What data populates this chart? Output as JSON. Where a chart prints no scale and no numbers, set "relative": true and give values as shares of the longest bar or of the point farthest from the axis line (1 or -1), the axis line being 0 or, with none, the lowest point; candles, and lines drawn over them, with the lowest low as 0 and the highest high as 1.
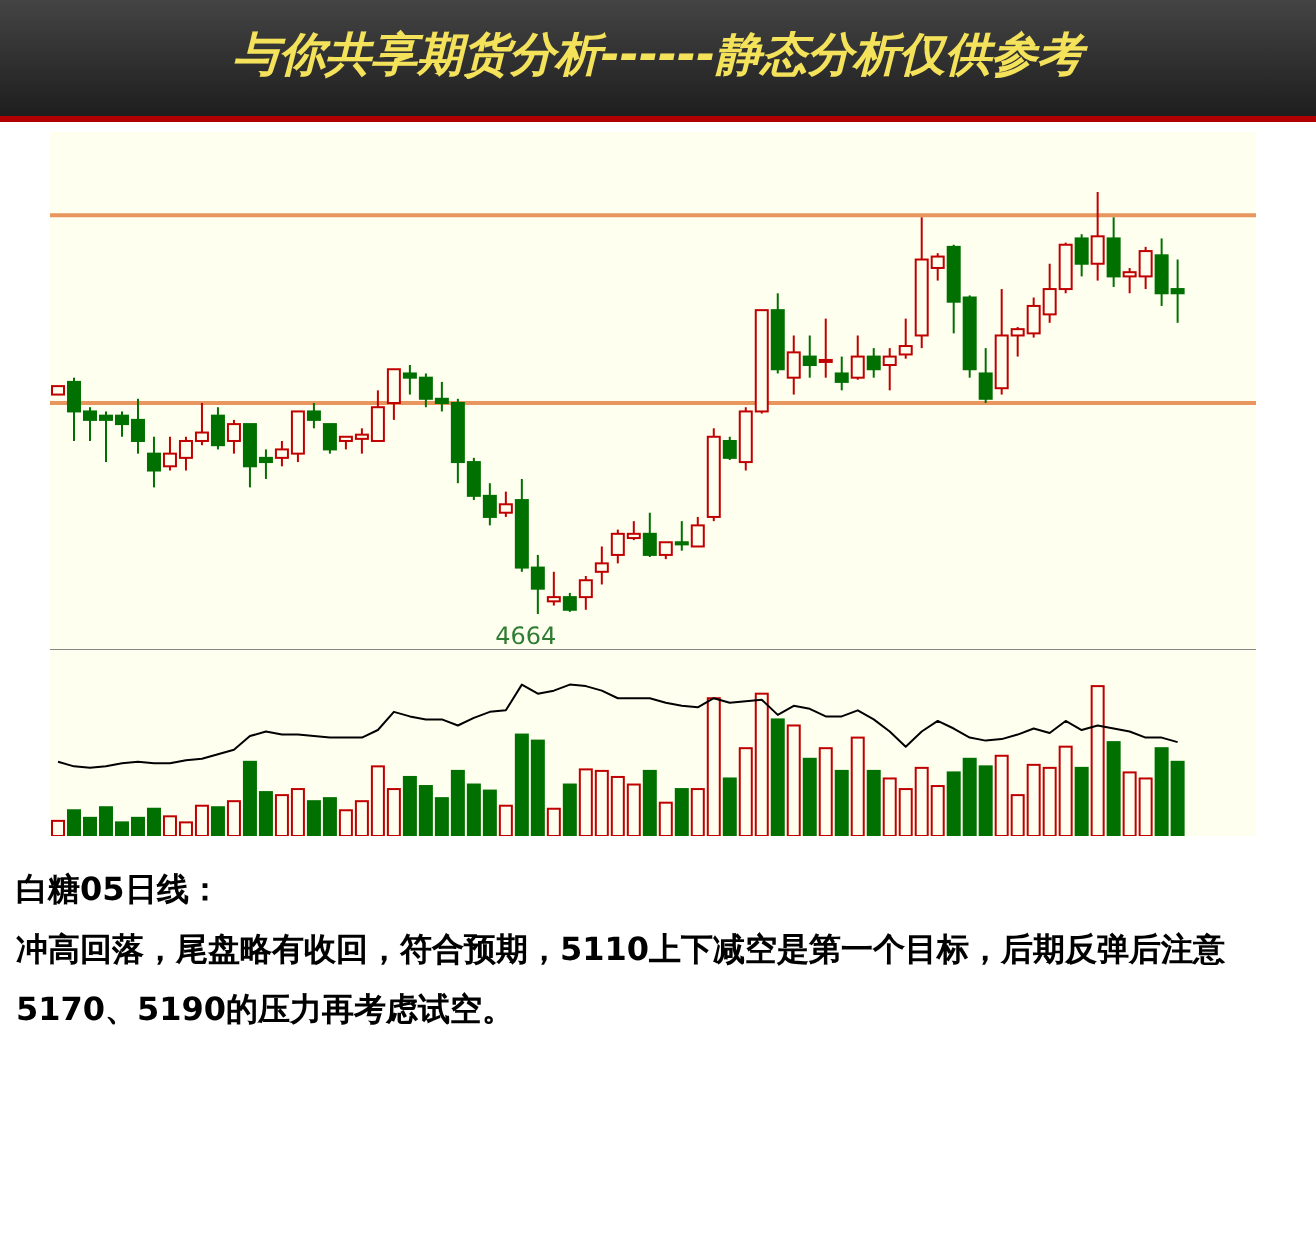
{
  "chart_data": [
    {
      "type": "candlestick",
      "relative": true,
      "title": "与你共享期货分析------静态分析仅供参考",
      "categories": [
        null,
        null,
        null,
        null,
        null,
        null,
        null,
        null,
        null,
        null,
        null,
        null,
        null,
        null,
        null,
        null,
        null,
        null,
        null,
        null,
        null,
        null,
        null,
        null,
        null,
        null,
        null,
        null,
        null,
        null,
        null,
        null,
        null,
        null,
        null,
        null,
        null,
        null,
        null,
        null,
        null,
        null,
        null,
        null,
        null,
        null,
        null,
        null,
        null,
        null,
        null,
        null,
        null,
        null,
        null,
        null,
        null,
        null,
        null,
        null,
        null,
        null,
        null,
        null,
        null,
        null,
        null,
        null,
        null,
        null,
        null
      ],
      "ohlc": [
        [
          0.52,
          0.54,
          0.52,
          0.54
        ],
        [
          0.55,
          0.56,
          0.41,
          0.48
        ],
        [
          0.48,
          0.49,
          0.41,
          0.46
        ],
        [
          0.47,
          0.48,
          0.36,
          0.46
        ],
        [
          0.47,
          0.48,
          0.42,
          0.45
        ],
        [
          0.46,
          0.51,
          0.38,
          0.41
        ],
        [
          0.38,
          0.42,
          0.3,
          0.34
        ],
        [
          0.35,
          0.42,
          0.34,
          0.38
        ],
        [
          0.37,
          0.42,
          0.34,
          0.41
        ],
        [
          0.41,
          0.5,
          0.4,
          0.43
        ],
        [
          0.47,
          0.49,
          0.39,
          0.4
        ],
        [
          0.41,
          0.46,
          0.38,
          0.45
        ],
        [
          0.45,
          0.45,
          0.3,
          0.35
        ],
        [
          0.37,
          0.39,
          0.32,
          0.36
        ],
        [
          0.37,
          0.41,
          0.35,
          0.39
        ],
        [
          0.38,
          0.48,
          0.36,
          0.48
        ],
        [
          0.48,
          0.5,
          0.44,
          0.46
        ],
        [
          0.45,
          0.45,
          0.38,
          0.39
        ],
        [
          0.41,
          0.42,
          0.39,
          0.42
        ],
        [
          0.415,
          0.44,
          0.38,
          0.425
        ],
        [
          0.41,
          0.53,
          0.41,
          0.49
        ],
        [
          0.5,
          0.58,
          0.46,
          0.58
        ],
        [
          0.57,
          0.59,
          0.52,
          0.56
        ],
        [
          0.56,
          0.57,
          0.49,
          0.51
        ],
        [
          0.51,
          0.55,
          0.48,
          0.5
        ],
        [
          0.5,
          0.51,
          0.31,
          0.36
        ],
        [
          0.36,
          0.37,
          0.27,
          0.28
        ],
        [
          0.28,
          0.31,
          0.21,
          0.23
        ],
        [
          0.24,
          0.29,
          0.23,
          0.26
        ],
        [
          0.27,
          0.32,
          0.1,
          0.11
        ],
        [
          0.11,
          0.14,
          0,
          0.06
        ],
        [
          0.03,
          0.1,
          0.02,
          0.04
        ],
        [
          0.04,
          0.05,
          0.005,
          0.01
        ],
        [
          0.04,
          0.09,
          0.01,
          0.08
        ],
        [
          0.1,
          0.16,
          0.07,
          0.12
        ],
        [
          0.14,
          0.2,
          0.12,
          0.19
        ],
        [
          0.18,
          0.22,
          0.175,
          0.19
        ],
        [
          0.19,
          0.24,
          0.135,
          0.14
        ],
        [
          0.14,
          0.17,
          0.13,
          0.17
        ],
        [
          0.17,
          0.22,
          0.15,
          0.165
        ],
        [
          0.16,
          0.23,
          0.16,
          0.21
        ],
        [
          0.23,
          0.44,
          0.22,
          0.42
        ],
        [
          0.41,
          0.42,
          0.365,
          0.37
        ],
        [
          0.36,
          0.49,
          0.34,
          0.48
        ],
        [
          0.48,
          0.72,
          0.475,
          0.72
        ],
        [
          0.72,
          0.76,
          0.57,
          0.58
        ],
        [
          0.56,
          0.66,
          0.52,
          0.62
        ],
        [
          0.61,
          0.66,
          0.56,
          0.59
        ],
        [
          0.598,
          0.7,
          0.56,
          0.602
        ],
        [
          0.57,
          0.61,
          0.53,
          0.55
        ],
        [
          0.56,
          0.66,
          0.555,
          0.61
        ],
        [
          0.61,
          0.63,
          0.56,
          0.58
        ],
        [
          0.59,
          0.63,
          0.53,
          0.61
        ],
        [
          0.615,
          0.7,
          0.605,
          0.635
        ],
        [
          0.66,
          0.94,
          0.63,
          0.84
        ],
        [
          0.82,
          0.855,
          0.79,
          0.847
        ],
        [
          0.87,
          0.875,
          0.665,
          0.74
        ],
        [
          0.75,
          0.755,
          0.56,
          0.58
        ],
        [
          0.57,
          0.63,
          0.5,
          0.51
        ],
        [
          0.535,
          0.77,
          0.52,
          0.66
        ],
        [
          0.66,
          0.68,
          0.61,
          0.675
        ],
        [
          0.665,
          0.75,
          0.655,
          0.73
        ],
        [
          0.71,
          0.83,
          0.69,
          0.77
        ],
        [
          0.77,
          0.88,
          0.76,
          0.875
        ],
        [
          0.89,
          0.9,
          0.8,
          0.83
        ],
        [
          0.83,
          1,
          0.79,
          0.895
        ],
        [
          0.89,
          0.94,
          0.775,
          0.8
        ],
        [
          0.8,
          0.82,
          0.76,
          0.81
        ],
        [
          0.8,
          0.87,
          0.77,
          0.86
        ],
        [
          0.85,
          0.89,
          0.73,
          0.76
        ],
        [
          0.77,
          0.84,
          0.69,
          0.76
        ]
      ],
      "ref_lines": [
        {
          "axis": "y",
          "value": 0.945,
          "color": "#e8955e"
        },
        {
          "axis": "y",
          "value": 0.5,
          "color": "#e8955e"
        }
      ],
      "annotations": [
        "4664"
      ]
    },
    {
      "type": "bar",
      "relative": true,
      "categories": [
        null,
        null,
        null,
        null,
        null,
        null,
        null,
        null,
        null,
        null,
        null,
        null,
        null,
        null,
        null,
        null,
        null,
        null,
        null,
        null,
        null,
        null,
        null,
        null,
        null,
        null,
        null,
        null,
        null,
        null,
        null,
        null,
        null,
        null,
        null,
        null,
        null,
        null,
        null,
        null,
        null,
        null,
        null,
        null,
        null,
        null,
        null,
        null,
        null,
        null,
        null,
        null,
        null,
        null,
        null,
        null,
        null,
        null,
        null,
        null,
        null,
        null,
        null,
        null,
        null,
        null,
        null,
        null,
        null,
        null,
        null
      ],
      "series": [
        {
          "type": "bar",
          "colors": [
            "#c00000",
            "#007000",
            "#007000",
            "#007000",
            "#007000",
            "#007000",
            "#007000",
            "#c00000",
            "#c00000",
            "#c00000",
            "#007000",
            "#c00000",
            "#007000",
            "#007000",
            "#c00000",
            "#c00000",
            "#007000",
            "#007000",
            "#c00000",
            "#c00000",
            "#c00000",
            "#c00000",
            "#007000",
            "#007000",
            "#007000",
            "#007000",
            "#007000",
            "#007000",
            "#c00000",
            "#007000",
            "#007000",
            "#c00000",
            "#007000",
            "#c00000",
            "#c00000",
            "#c00000",
            "#c00000",
            "#007000",
            "#c00000",
            "#007000",
            "#c00000",
            "#c00000",
            "#007000",
            "#c00000",
            "#c00000",
            "#007000",
            "#c00000",
            "#007000",
            "#c00000",
            "#007000",
            "#c00000",
            "#007000",
            "#c00000",
            "#c00000",
            "#c00000",
            "#c00000",
            "#007000",
            "#007000",
            "#007000",
            "#c00000",
            "#c00000",
            "#c00000",
            "#c00000",
            "#c00000",
            "#007000",
            "#c00000",
            "#007000",
            "#c00000",
            "#c00000",
            "#007000",
            "#007000"
          ],
          "values": [
            0.1,
            0.17,
            0.12,
            0.19,
            0.09,
            0.12,
            0.18,
            0.13,
            0.09,
            0.2,
            0.19,
            0.23,
            0.49,
            0.29,
            0.27,
            0.31,
            0.23,
            0.25,
            0.17,
            0.23,
            0.46,
            0.31,
            0.39,
            0.33,
            0.25,
            0.43,
            0.34,
            0.3,
            0.2,
            0.67,
            0.63,
            0.18,
            0.34,
            0.44,
            0.43,
            0.39,
            0.34,
            0.43,
            0.22,
            0.31,
            0.31,
            0.91,
            0.38,
            0.58,
            0.94,
            0.77,
            0.73,
            0.51,
            0.58,
            0.43,
            0.65,
            0.43,
            0.38,
            0.31,
            0.45,
            0.33,
            0.42,
            0.51,
            0.46,
            0.53,
            0.27,
            0.47,
            0.45,
            0.59,
            0.45,
            0.99,
            0.62,
            0.42,
            0.38,
            0.58,
            0.49
          ]
        },
        {
          "type": "line",
          "color": "#000000",
          "values": [
            0.49,
            0.46,
            0.45,
            0.46,
            0.48,
            0.49,
            0.48,
            0.48,
            0.5,
            0.51,
            0.54,
            0.57,
            0.66,
            0.69,
            0.67,
            0.67,
            0.66,
            0.65,
            0.65,
            0.65,
            0.7,
            0.82,
            0.79,
            0.77,
            0.77,
            0.73,
            0.78,
            0.82,
            0.83,
            1.0,
            0.94,
            0.96,
            1.0,
            0.99,
            0.96,
            0.91,
            0.91,
            0.91,
            0.88,
            0.86,
            0.85,
            0.91,
            0.88,
            0.89,
            0.9,
            0.8,
            0.86,
            0.84,
            0.79,
            0.79,
            0.83,
            0.77,
            0.69,
            0.59,
            0.69,
            0.76,
            0.71,
            0.65,
            0.63,
            0.64,
            0.67,
            0.71,
            0.68,
            0.76,
            0.7,
            0.73,
            0.71,
            0.69,
            0.65,
            0.65,
            0.62
          ]
        }
      ],
      "annotations": [
        "白糖05日线：",
        "冲高回落，尾盘略有收回，符合预期，5110上下减空是第一个目标，后期反弹后注意5170、5190的压力再考虑试空。"
      ]
    }
  ]
}
